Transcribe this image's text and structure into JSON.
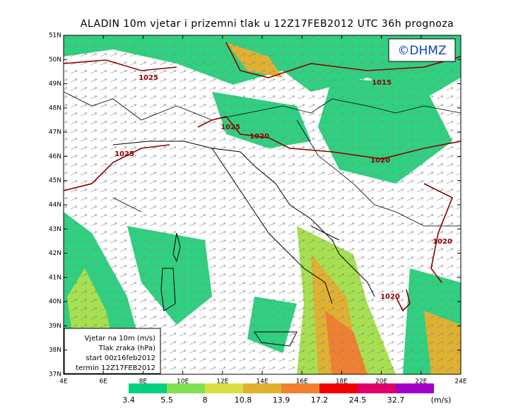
{
  "title": "ALADIN  10m  vjetar  i  prizemni  tlak  u  12Z17FEB2012  UTC  36h  prognoza",
  "copyright": "©DHMZ",
  "lat_labels": [
    "51N",
    "50N",
    "49N",
    "48N",
    "47N",
    "46N",
    "45N",
    "44N",
    "43N",
    "42N",
    "41N",
    "40N",
    "39N",
    "38N",
    "37N"
  ],
  "lon_labels": [
    "4E",
    "6E",
    "8E",
    "10E",
    "12E",
    "14E",
    "16E",
    "18E",
    "20E",
    "22E",
    "24E"
  ],
  "isobar_labels": [
    "1025",
    "1015",
    "1025",
    "1020",
    "1025",
    "1020",
    "1020",
    "1020"
  ],
  "legend_lines": [
    "Vjetar na 10m (m/s)",
    "Tlak zraka (hPa)",
    "start 00z16feb2012",
    "termin 12Z17FEB2012"
  ],
  "colorbar": {
    "levels": [
      3.4,
      5.5,
      8,
      10.8,
      13.9,
      17.2,
      24.5,
      32.7
    ],
    "colors": [
      "#00d080",
      "#80e050",
      "#d8e040",
      "#e0b030",
      "#f08030",
      "#f00000",
      "#e0006a",
      "#a000c8"
    ],
    "unit": "(m/s)"
  }
}
